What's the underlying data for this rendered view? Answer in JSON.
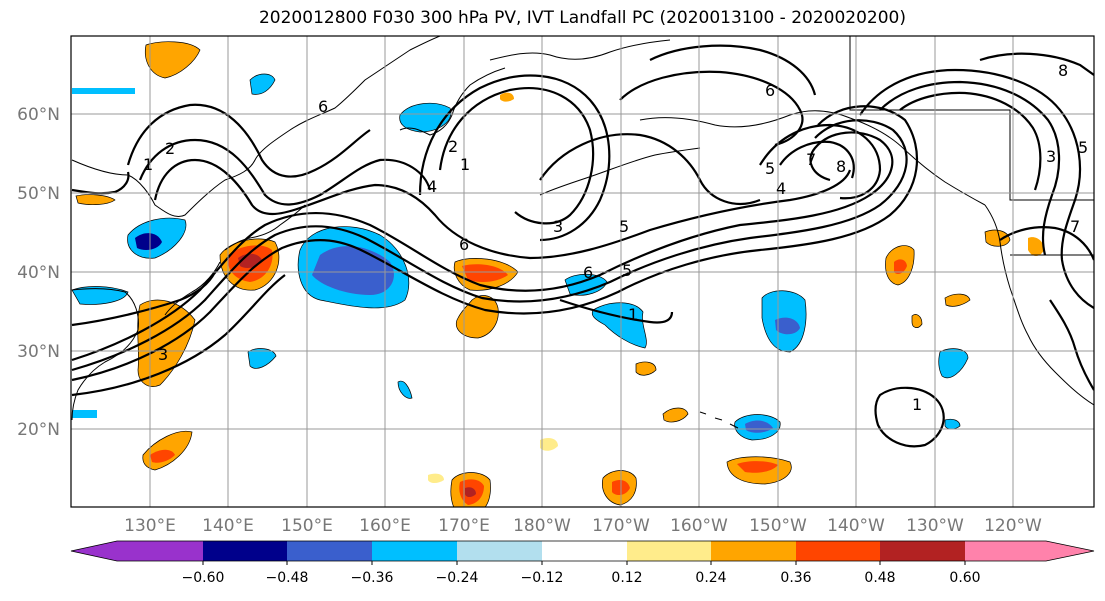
{
  "title": "2020012800 F030 300 hPa PV, IVT Landfall PC (2020013100 - 2020020200)",
  "map": {
    "lat_labels": [
      "60°N",
      "50°N",
      "40°N",
      "30°N",
      "20°N"
    ],
    "lon_labels": [
      "130°E",
      "140°E",
      "150°E",
      "160°E",
      "170°E",
      "180°W",
      "170°W",
      "160°W",
      "150°W",
      "140°W",
      "130°W",
      "120°W"
    ],
    "contour_labels": [
      "6",
      "6",
      "6",
      "6",
      "5",
      "5",
      "5",
      "5",
      "4",
      "4",
      "3",
      "3",
      "3",
      "2",
      "2",
      "1",
      "1",
      "1",
      "1",
      "7",
      "8",
      "8",
      "7"
    ]
  },
  "colorbar": {
    "ticks": [
      "−0.60",
      "−0.48",
      "−0.36",
      "−0.24",
      "−0.12",
      "0.12",
      "0.24",
      "0.36",
      "0.48",
      "0.60"
    ],
    "colors": [
      "#9932cc",
      "#00008b",
      "#3a5fcd",
      "#00bfff",
      "#b2dfee",
      "#ffffff",
      "#ffec8b",
      "#ffa500",
      "#ff4500",
      "#b22222",
      "#ff82ab"
    ]
  },
  "fill_colors": {
    "neg_strong": "#3a5fcd",
    "neg_mid": "#00bfff",
    "neg_weak": "#b2dfee",
    "pos_weak": "#ffec8b",
    "pos_mid": "#ffa500",
    "pos_strong": "#ff4500",
    "pos_vstrong": "#b22222",
    "neg_vstrong": "#00008b"
  }
}
